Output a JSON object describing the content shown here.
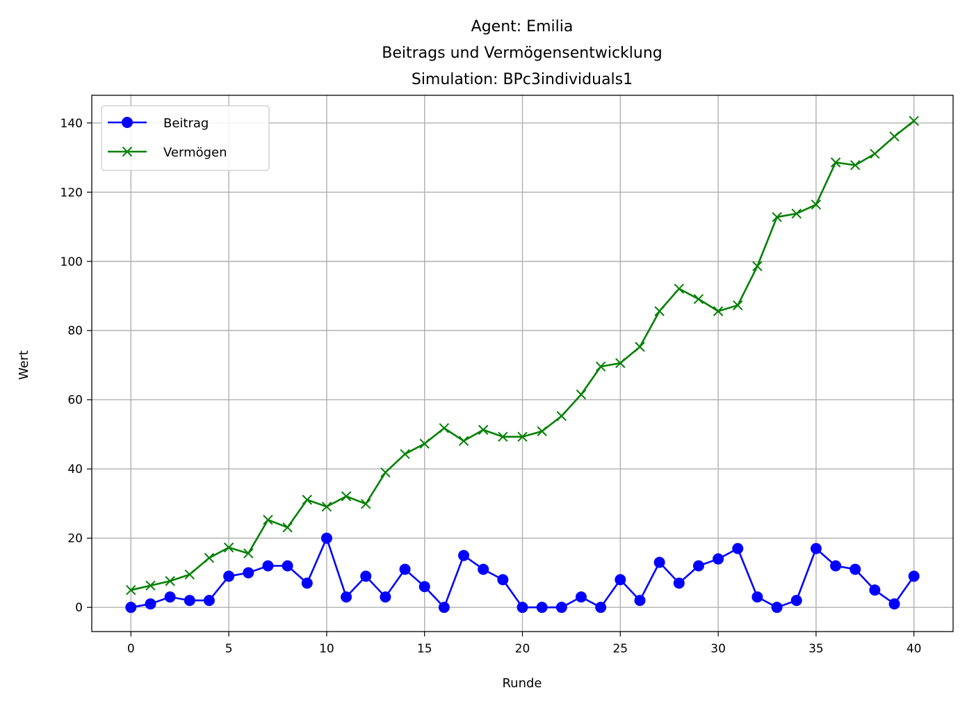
{
  "chart_data": {
    "type": "line",
    "title_lines": [
      "Agent: Emilia",
      "Beitrags und Vermögensentwicklung",
      "Simulation: BPc3individuals1"
    ],
    "xlabel": "Runde",
    "ylabel": "Wert",
    "xlim": [
      -2,
      42
    ],
    "ylim": [
      -7,
      148
    ],
    "x_ticks": [
      0,
      5,
      10,
      15,
      20,
      25,
      30,
      35,
      40
    ],
    "y_ticks": [
      0,
      20,
      40,
      60,
      80,
      100,
      120,
      140
    ],
    "grid": true,
    "legend_position": "top-left",
    "x": [
      0,
      1,
      2,
      3,
      4,
      5,
      6,
      7,
      8,
      9,
      10,
      11,
      12,
      13,
      14,
      15,
      16,
      17,
      18,
      19,
      20,
      21,
      22,
      23,
      24,
      25,
      26,
      27,
      28,
      29,
      30,
      31,
      32,
      33,
      34,
      35,
      36,
      37,
      38,
      39,
      40
    ],
    "series": [
      {
        "name": "Beitrag",
        "color": "#0000ff",
        "marker": "circle",
        "values": [
          0,
          1,
          3,
          2,
          2,
          9,
          10,
          12,
          12,
          7,
          20,
          3,
          9,
          3,
          11,
          6,
          0,
          15,
          11,
          8,
          0,
          0,
          0,
          3,
          0,
          8,
          2,
          13,
          7,
          12,
          14,
          17,
          3,
          0,
          2,
          17,
          12,
          11,
          5,
          1,
          9
        ]
      },
      {
        "name": "Vermögen",
        "color": "#008000",
        "marker": "x",
        "values": [
          5,
          6.3,
          7.6,
          9.5,
          14.3,
          17.3,
          15.6,
          25.3,
          23.1,
          31.1,
          29.1,
          32.1,
          29.9,
          39,
          44.3,
          47.3,
          51.8,
          48.1,
          51.3,
          49.3,
          49.3,
          50.9,
          55.3,
          61.5,
          69.6,
          70.6,
          75.3,
          85.6,
          92.1,
          89.1,
          85.6,
          87.3,
          98.6,
          112.8,
          113.8,
          116.4,
          128.6,
          127.8,
          131.1,
          136.1,
          140.6
        ]
      }
    ]
  }
}
